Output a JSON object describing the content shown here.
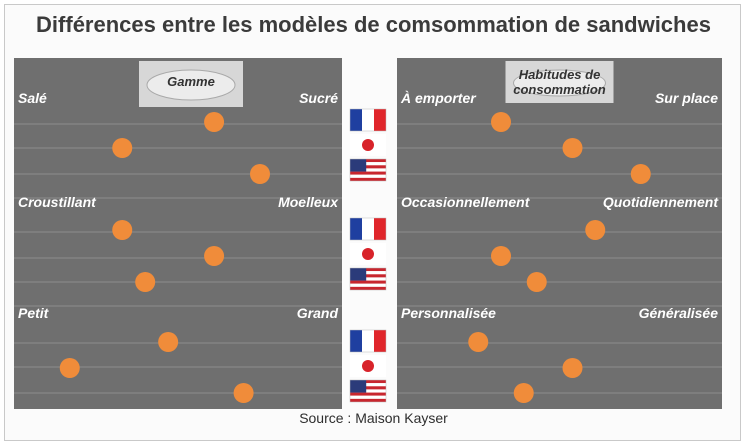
{
  "title": "Différences entre les modèles de comsommation de sandwiches",
  "source": "Source : Maison Kayser",
  "flag_rows": [
    "France",
    "Japon",
    "États-Unis"
  ],
  "colors": {
    "panel": "#6f6f6f",
    "line": "#8c8c8c",
    "dot": "#f08c3a",
    "label": "#ffffff",
    "title": "#3b3b3b"
  },
  "chart_data": [
    {
      "type": "scatter",
      "title": "Gamme",
      "scale": [
        0,
        1
      ],
      "groups": [
        {
          "left": "Salé",
          "right": "Sucré",
          "values": [
            0.61,
            0.33,
            0.75
          ]
        },
        {
          "left": "Croustillant",
          "right": "Moelleux",
          "values": [
            0.33,
            0.61,
            0.4
          ]
        },
        {
          "left": "Petit",
          "right": "Grand",
          "values": [
            0.47,
            0.17,
            0.7
          ]
        }
      ]
    },
    {
      "type": "scatter",
      "title": "Habitudes de consommation",
      "scale": [
        0,
        1
      ],
      "groups": [
        {
          "left": "À emporter",
          "right": "Sur place",
          "values": [
            0.32,
            0.54,
            0.75
          ]
        },
        {
          "left": "Occasionnellement",
          "right": "Quotidiennement",
          "values": [
            0.61,
            0.32,
            0.43
          ]
        },
        {
          "left": "Personnalisée",
          "right": "Généralisée",
          "values": [
            0.25,
            0.54,
            0.39
          ]
        }
      ]
    }
  ]
}
